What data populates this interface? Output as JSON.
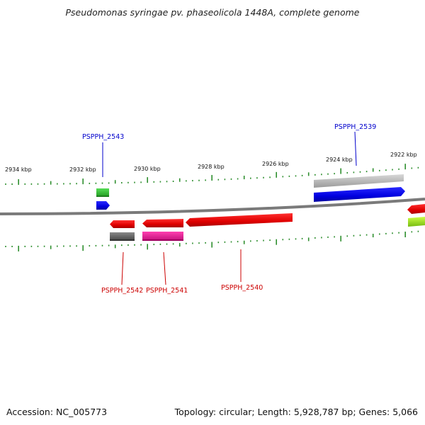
{
  "title": "Pseudomonas syringae pv. phaseolicola 1448A, complete genome",
  "footer": {
    "accession": "Accession: NC_005773",
    "summary": "Topology: circular; Length: 5,928,787 bp; Genes: 5,066"
  },
  "scale": {
    "ticks": [
      {
        "label": "2934 kbp"
      },
      {
        "label": "2932 kbp"
      },
      {
        "label": "2930 kbp"
      },
      {
        "label": "2928 kbp"
      },
      {
        "label": "2926 kbp"
      },
      {
        "label": "2924 kbp"
      },
      {
        "label": "2922 kbp"
      }
    ]
  },
  "genes": {
    "PSPPH_2543": {
      "label": "PSPPH_2543",
      "color": "#0000cc"
    },
    "PSPPH_2539": {
      "label": "PSPPH_2539",
      "color": "#0000cc"
    },
    "PSPPH_2542": {
      "label": "PSPPH_2542",
      "color": "#cc0000"
    },
    "PSPPH_2541": {
      "label": "PSPPH_2541",
      "color": "#cc0000"
    },
    "PSPPH_2540": {
      "label": "PSPPH_2540",
      "color": "#cc0000"
    }
  },
  "colors": {
    "backbone": "#7a7a7a",
    "tick_dots": "#2f8f2f",
    "cds_red": "#ee0000",
    "cds_blue": "#0000ee",
    "gene_green": "#33bb33",
    "gene_magenta": "#e0208c",
    "gene_gray": "#666666",
    "gene_lightgray": "#bbbbbb",
    "gene_lime": "#99dd22"
  }
}
